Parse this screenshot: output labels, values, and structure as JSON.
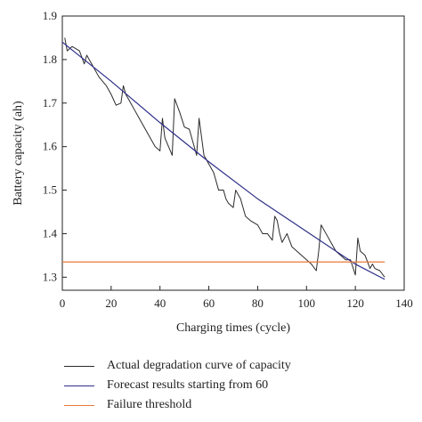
{
  "chart_data": {
    "type": "line",
    "xlabel": "Charging times (cycle)",
    "ylabel": "Battery capacity (ah)",
    "xlim": [
      0,
      140
    ],
    "ylim": [
      1.27,
      1.9
    ],
    "xticks": [
      0,
      20,
      40,
      60,
      80,
      100,
      120,
      140
    ],
    "yticks": [
      1.3,
      1.4,
      1.5,
      1.6,
      1.7,
      1.8,
      1.9
    ],
    "grid": false,
    "legend_position": "bottom",
    "series": [
      {
        "name": "Actual degradation curve of capacity",
        "color": "#2b2b2b",
        "x": [
          1,
          2,
          4,
          7,
          9,
          10,
          12,
          15,
          18,
          20,
          22,
          24,
          25,
          26,
          28,
          30,
          33,
          36,
          38,
          40,
          41,
          42,
          45,
          46,
          48,
          50,
          52,
          54,
          55,
          56,
          58,
          60,
          62,
          64,
          66,
          67,
          68,
          70,
          71,
          73,
          75,
          77,
          80,
          82,
          84,
          86,
          87,
          88,
          89,
          90,
          92,
          94,
          96,
          98,
          100,
          102,
          104,
          105,
          106,
          108,
          110,
          112,
          114,
          116,
          118,
          120,
          121,
          122,
          124,
          126,
          127,
          128,
          130,
          132
        ],
        "y": [
          1.85,
          1.82,
          1.83,
          1.82,
          1.79,
          1.81,
          1.79,
          1.76,
          1.74,
          1.72,
          1.695,
          1.7,
          1.74,
          1.72,
          1.7,
          1.68,
          1.65,
          1.62,
          1.6,
          1.59,
          1.665,
          1.62,
          1.58,
          1.71,
          1.68,
          1.645,
          1.64,
          1.6,
          1.58,
          1.665,
          1.58,
          1.56,
          1.54,
          1.5,
          1.5,
          1.48,
          1.47,
          1.46,
          1.5,
          1.48,
          1.44,
          1.43,
          1.42,
          1.4,
          1.4,
          1.385,
          1.44,
          1.43,
          1.4,
          1.38,
          1.4,
          1.37,
          1.36,
          1.35,
          1.34,
          1.33,
          1.315,
          1.36,
          1.42,
          1.4,
          1.38,
          1.36,
          1.35,
          1.34,
          1.34,
          1.305,
          1.39,
          1.36,
          1.35,
          1.32,
          1.33,
          1.32,
          1.315,
          1.3
        ]
      },
      {
        "name": "Forecast results starting from 60",
        "color": "#2e2e8a",
        "x": [
          0,
          20,
          40,
          60,
          80,
          100,
          120,
          132
        ],
        "y": [
          1.84,
          1.75,
          1.655,
          1.565,
          1.48,
          1.405,
          1.33,
          1.295
        ]
      },
      {
        "name": "Failure threshold",
        "color": "#e87a38",
        "x": [
          0,
          132
        ],
        "y": [
          1.335,
          1.335
        ]
      }
    ]
  }
}
